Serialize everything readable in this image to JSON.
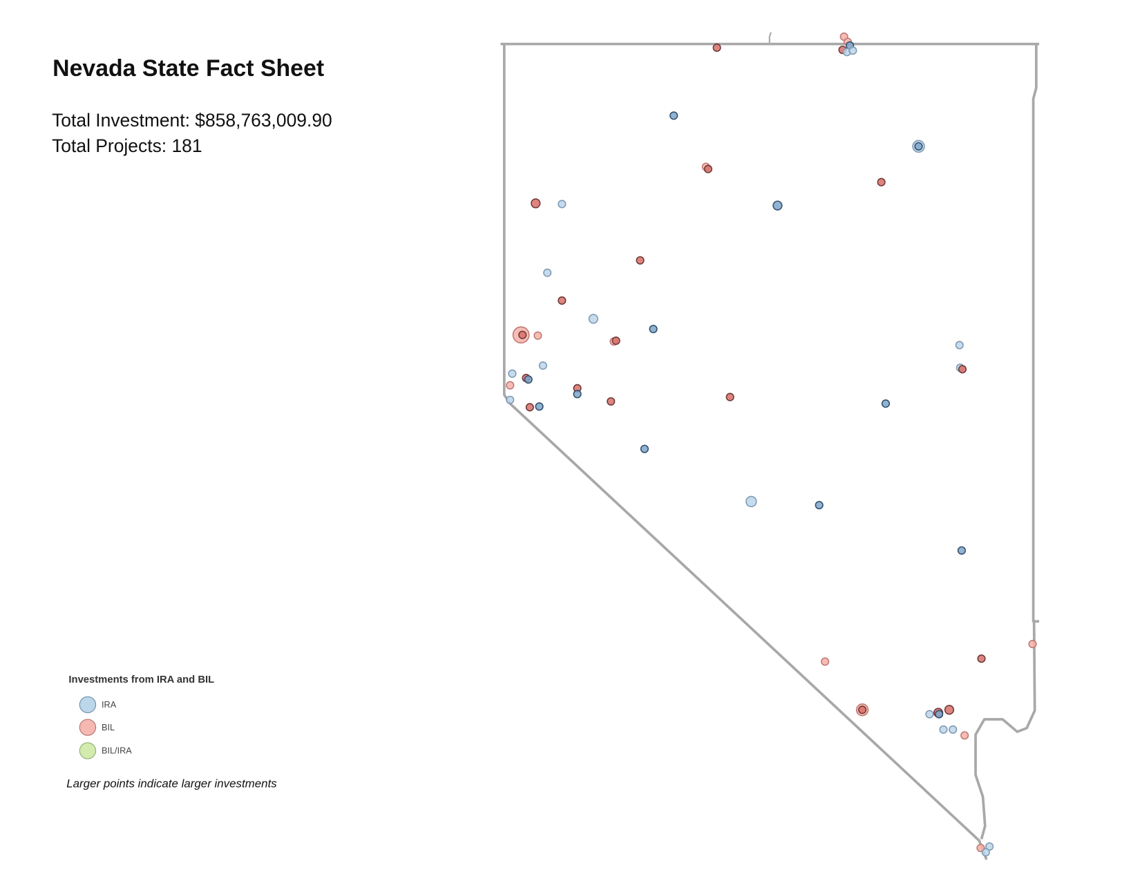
{
  "header": {
    "title": "Nevada State Fact Sheet",
    "stats": [
      "Total Investment: $858,763,009.90",
      "Total Projects: 181"
    ]
  },
  "legend": {
    "title": "Investments from IRA and BIL",
    "items": [
      "IRA",
      "BIL",
      "BIL/IRA"
    ],
    "note": "Larger points indicate larger investments"
  }
}
